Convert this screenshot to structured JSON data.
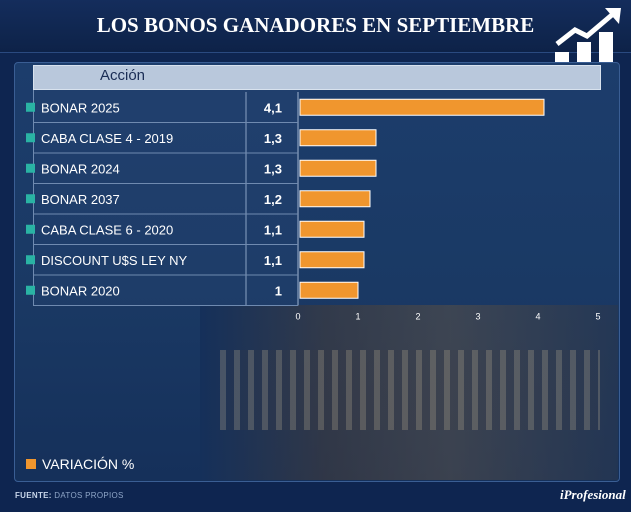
{
  "header": {
    "title": "LOS BONOS GANADORES EN SEPTIEMBRE"
  },
  "table": {
    "column_label": "Acción"
  },
  "legend": {
    "label": "VARIACIÓN %"
  },
  "footer": {
    "source_label": "FUENTE:",
    "source_value": "DATOS PROPIOS",
    "brand": "iProfesional"
  },
  "colors": {
    "bar": "#f0962e",
    "marker": "#2ab3a4",
    "background": "#0e2550"
  },
  "chart_data": {
    "type": "bar",
    "orientation": "horizontal",
    "title": "LOS BONOS GANADORES EN SEPTIEMBRE",
    "categories": [
      "BONAR 2025",
      "CABA CLASE 4 - 2019",
      "BONAR 2024",
      "BONAR 2037",
      "CABA CLASE 6 - 2020",
      "DISCOUNT U$S LEY NY",
      "BONAR 2020"
    ],
    "values": [
      4.1,
      1.3,
      1.3,
      1.2,
      1.1,
      1.1,
      1
    ],
    "value_labels": [
      "4,1",
      "1,3",
      "1,3",
      "1,2",
      "1,1",
      "1,1",
      "1"
    ],
    "series_name": "VARIACIÓN %",
    "xlim": [
      0,
      5
    ],
    "xticks": [
      "0",
      "1",
      "2",
      "3",
      "4",
      "5"
    ],
    "xlabel": "",
    "ylabel": "Acción",
    "legend_position": "bottom-left"
  }
}
